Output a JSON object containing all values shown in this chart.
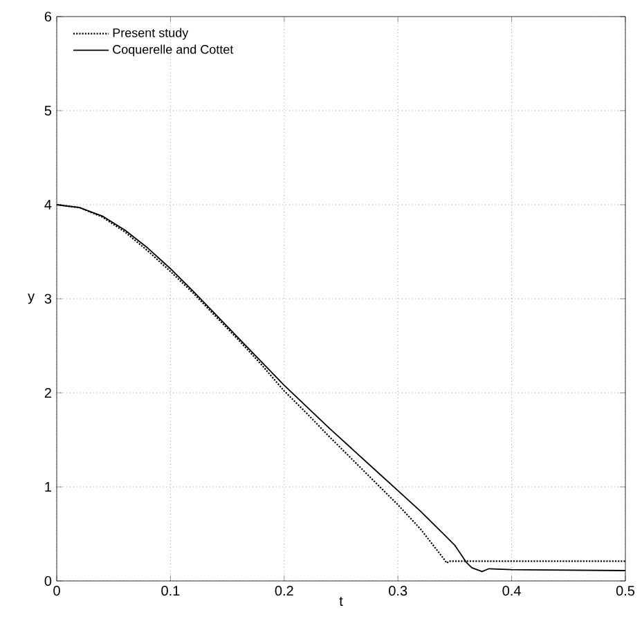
{
  "chart_data": {
    "type": "line",
    "xlabel": "t",
    "ylabel": "y",
    "xlim": [
      0,
      0.5
    ],
    "ylim": [
      0,
      6
    ],
    "xticks": [
      0,
      0.1,
      0.2,
      0.3,
      0.4,
      0.5
    ],
    "yticks": [
      0,
      1,
      2,
      3,
      4,
      5,
      6
    ],
    "grid": true,
    "legend": "top left",
    "marker": "none",
    "series": [
      {
        "name": "Present study",
        "color": "#000000",
        "line_style": "dotted",
        "x": [
          0,
          0.02,
          0.04,
          0.06,
          0.08,
          0.1,
          0.12,
          0.14,
          0.16,
          0.18,
          0.2,
          0.22,
          0.24,
          0.26,
          0.28,
          0.3,
          0.32,
          0.34,
          0.343,
          0.345,
          0.5
        ],
        "values": [
          4,
          3.97,
          3.87,
          3.71,
          3.51,
          3.29,
          3.06,
          2.81,
          2.56,
          2.3,
          2.02,
          1.78,
          1.53,
          1.29,
          1.05,
          0.81,
          0.55,
          0.24,
          0.19,
          0.21,
          0.21
        ]
      },
      {
        "name": "Coquerelle and Cottet",
        "color": "#000000",
        "line_style": "solid",
        "x": [
          0,
          0.02,
          0.04,
          0.06,
          0.08,
          0.1,
          0.12,
          0.14,
          0.16,
          0.18,
          0.2,
          0.22,
          0.24,
          0.26,
          0.28,
          0.3,
          0.32,
          0.34,
          0.35,
          0.36,
          0.365,
          0.374,
          0.38,
          0.4,
          0.5
        ],
        "values": [
          4,
          3.97,
          3.88,
          3.73,
          3.54,
          3.32,
          3.08,
          2.83,
          2.58,
          2.33,
          2.08,
          1.85,
          1.62,
          1.4,
          1.18,
          0.96,
          0.74,
          0.5,
          0.38,
          0.2,
          0.14,
          0.1,
          0.13,
          0.12,
          0.11
        ]
      }
    ]
  }
}
